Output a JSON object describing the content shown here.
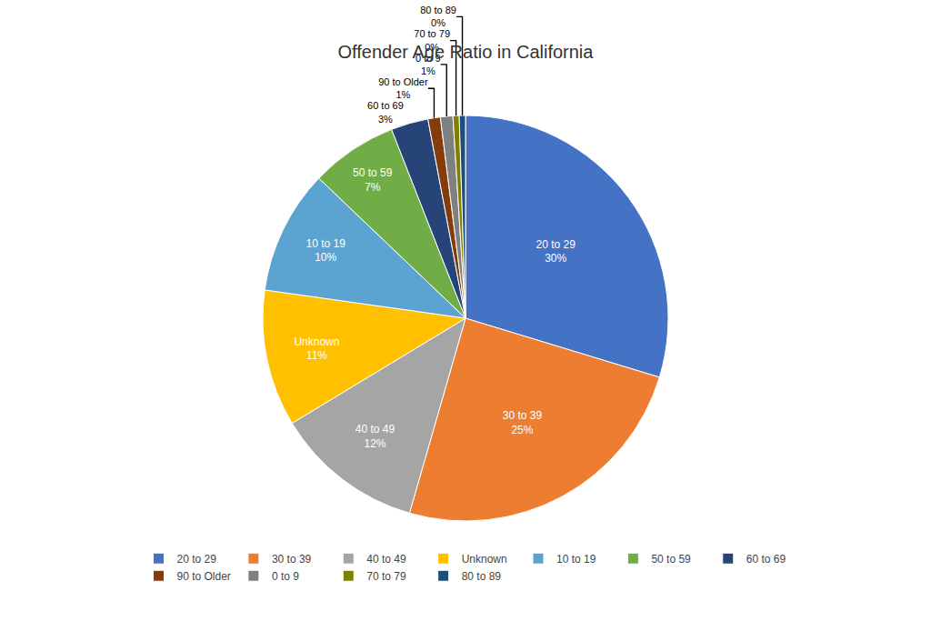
{
  "chart_data": {
    "type": "pie",
    "title": "Offender Age Ratio in California",
    "categories": [
      "20 to 29",
      "30 to 39",
      "40 to 49",
      "Unknown",
      "10 to 19",
      "50 to 59",
      "60 to 69",
      "90 to Older",
      "0 to 9",
      "70 to 79",
      "80 to 89"
    ],
    "values": [
      30,
      25,
      12,
      11,
      10,
      7,
      3,
      1,
      1,
      0.5,
      0.5
    ],
    "value_labels": [
      "30%",
      "25%",
      "12%",
      "11%",
      "10%",
      "7%",
      "3%",
      "1%",
      "1%",
      "0%",
      "0%"
    ],
    "colors": [
      "#4472C4",
      "#ED7D31",
      "#A5A5A5",
      "#FFC000",
      "#5BA3D0",
      "#70AD47",
      "#264478",
      "#843C0C",
      "#808080",
      "#808000",
      "#1F4E79"
    ],
    "data_labels": true,
    "legend": "bottom"
  }
}
